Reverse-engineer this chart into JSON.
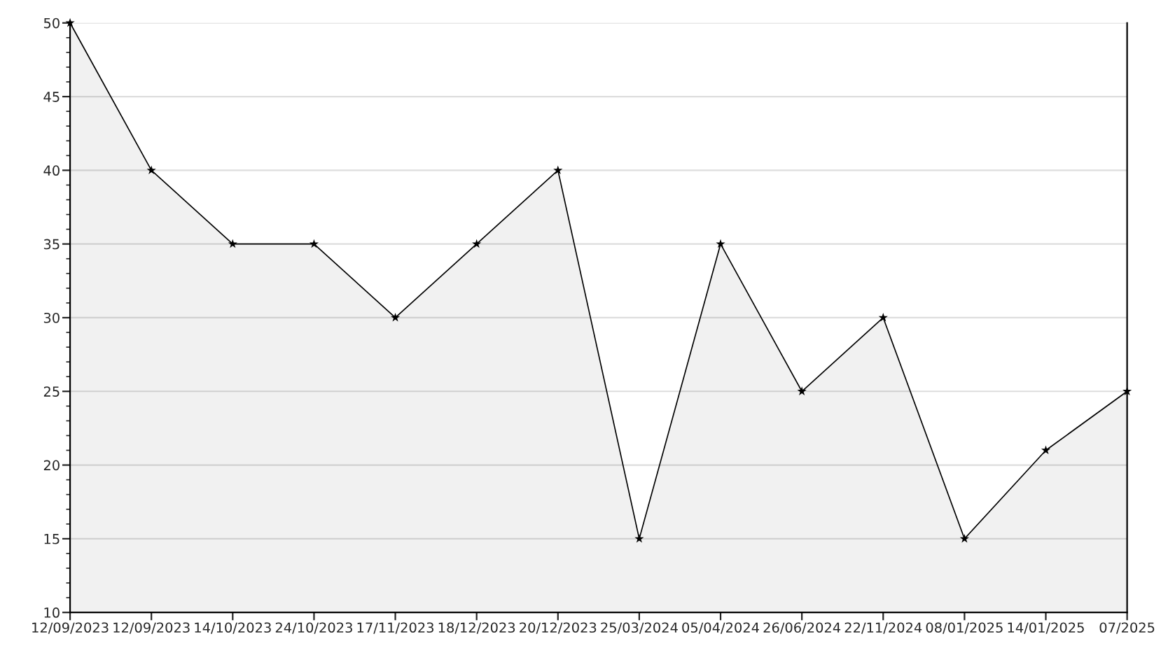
{
  "chart_data": {
    "type": "area",
    "categories": [
      "12/09/2023",
      "12/09/2023",
      "14/10/2023",
      "24/10/2023",
      "17/11/2023",
      "18/12/2023",
      "20/12/2023",
      "25/03/2024",
      "05/04/2024",
      "26/06/2024",
      "22/11/2024",
      "08/01/2025",
      "14/01/2025",
      "07/2025"
    ],
    "series": [
      {
        "color": "#000000",
        "values": [
          50,
          40,
          35,
          35,
          30,
          35,
          40,
          15,
          35,
          25,
          30,
          15,
          21,
          25
        ]
      }
    ],
    "ylim": [
      10,
      50
    ],
    "yticks": [
      10,
      15,
      20,
      25,
      30,
      35,
      40,
      45,
      50
    ],
    "grid": "y",
    "marker": "star",
    "line_style": "solid",
    "legend": false
  }
}
